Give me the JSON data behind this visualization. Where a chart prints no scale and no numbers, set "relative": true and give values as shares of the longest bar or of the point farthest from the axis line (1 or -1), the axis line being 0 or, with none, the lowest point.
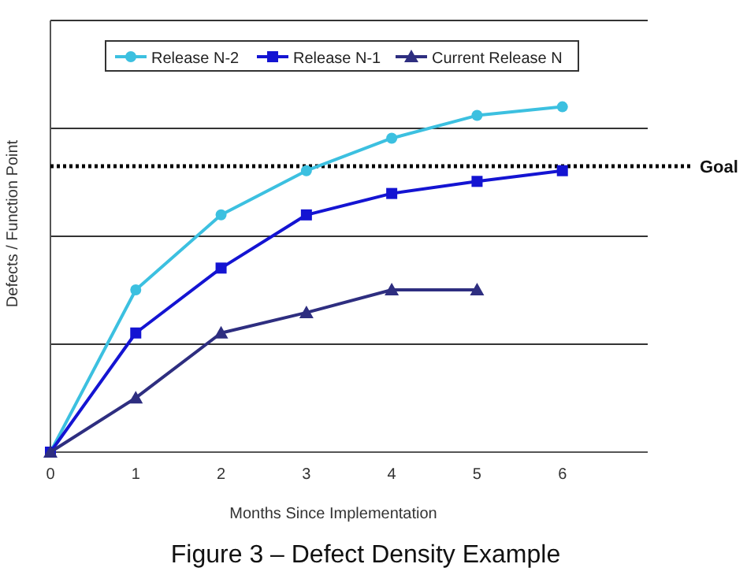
{
  "chart_data": {
    "type": "line",
    "title": "Figure 3 – Defect Density Example",
    "xlabel": "Months Since Implementation",
    "ylabel": "Defects / Function Point",
    "relative": true,
    "x": [
      0,
      1,
      2,
      3,
      4,
      5,
      6
    ],
    "xlim": [
      0,
      7
    ],
    "xticks": [
      0,
      1,
      2,
      3,
      4,
      5,
      6
    ],
    "grid": "y",
    "legend": "top",
    "series": [
      {
        "name": "Release N-2",
        "color": "#3cc0e0",
        "marker": "circle",
        "values": [
          0,
          0.47,
          0.687,
          0.815,
          0.909,
          0.975,
          1
        ]
      },
      {
        "name": "Release N-1",
        "color": "#1414d2",
        "marker": "square",
        "values": [
          0,
          0.345,
          0.533,
          0.687,
          0.749,
          0.784,
          0.815
        ]
      },
      {
        "name": "Current Release N",
        "color": "#2e2e80",
        "marker": "triangle",
        "values": [
          0,
          0.157,
          0.345,
          0.404,
          0.47,
          0.47,
          null
        ]
      }
    ],
    "ref_lines": [
      {
        "axis": "y",
        "value": 0.828,
        "label": "Goal",
        "color": "#000000",
        "line_style": "dotted"
      }
    ]
  }
}
